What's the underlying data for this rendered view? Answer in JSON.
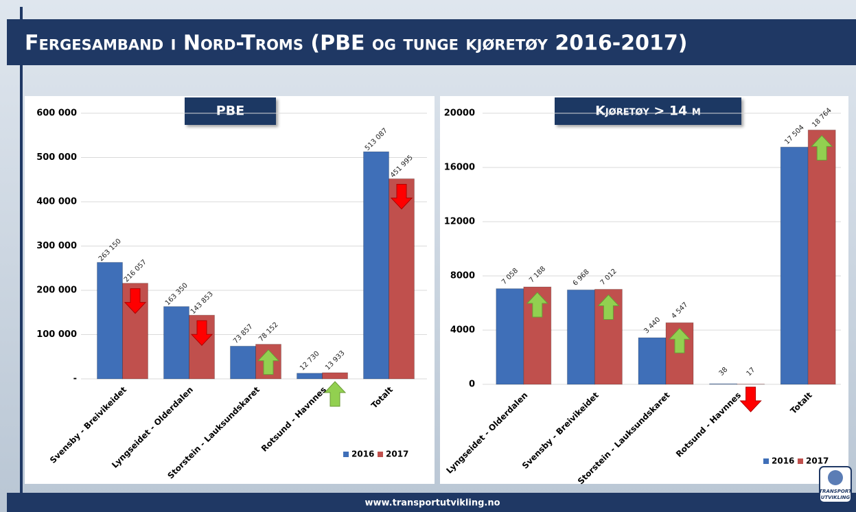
{
  "title": "Fergesamband i Nord-Troms (PBE og tunge kjøretøy 2016-2017)",
  "footer": "www.transportutvikling.no",
  "logo": {
    "line1": "TRANSPORT",
    "line2": "UTVIKLING"
  },
  "chart_data": [
    {
      "type": "bar",
      "title": "PBE",
      "categories": [
        "Svensby - Breivikeidet",
        "Lyngseidet - Olderdalen",
        "Storstein - Lauksundskaret",
        "Rotsund - Havnnes",
        "Totalt"
      ],
      "series": [
        {
          "name": "2016",
          "color": "#3f6fb8",
          "values": [
            263150,
            163350,
            73857,
            12730,
            513087
          ],
          "value_labels": [
            "263 150",
            "163 350",
            "73 857",
            "12 730",
            "513 087"
          ]
        },
        {
          "name": "2017",
          "color": "#c0504d",
          "values": [
            216057,
            143853,
            78152,
            13933,
            451995
          ],
          "value_labels": [
            "216 057",
            "143 853",
            "78 152",
            "13 933",
            "451 995"
          ]
        }
      ],
      "ylim": [
        0,
        600000
      ],
      "yticks": [
        {
          "value": 0,
          "label": "-"
        },
        {
          "value": 100000,
          "label": "100 000"
        },
        {
          "value": 200000,
          "label": "200 000"
        },
        {
          "value": 300000,
          "label": "300 000"
        },
        {
          "value": 400000,
          "label": "400 000"
        },
        {
          "value": 500000,
          "label": "500 000"
        },
        {
          "value": 600000,
          "label": "600 000"
        }
      ],
      "grid": true,
      "legend": "bottom right"
    },
    {
      "type": "bar",
      "title": "Kjøretøy > 14 m",
      "categories": [
        "Lyngseidet - Olderdalen",
        "Svensby - Breivikeidet",
        "Storstein - Lauksundskaret",
        "Rotsund - Havnnes",
        "Totalt"
      ],
      "series": [
        {
          "name": "2016",
          "color": "#3f6fb8",
          "values": [
            7058,
            6968,
            3440,
            38,
            17504
          ],
          "value_labels": [
            "7 058",
            "6 968",
            "3 440",
            "38",
            "17 504"
          ]
        },
        {
          "name": "2017",
          "color": "#c0504d",
          "values": [
            7188,
            7012,
            4547,
            17,
            18764
          ],
          "value_labels": [
            "7 188",
            "7 012",
            "4 547",
            "17",
            "18 764"
          ]
        }
      ],
      "ylim": [
        0,
        20000
      ],
      "yticks": [
        0,
        4000,
        8000,
        12000,
        16000,
        20000
      ],
      "grid": true,
      "legend": "bottom right"
    }
  ]
}
